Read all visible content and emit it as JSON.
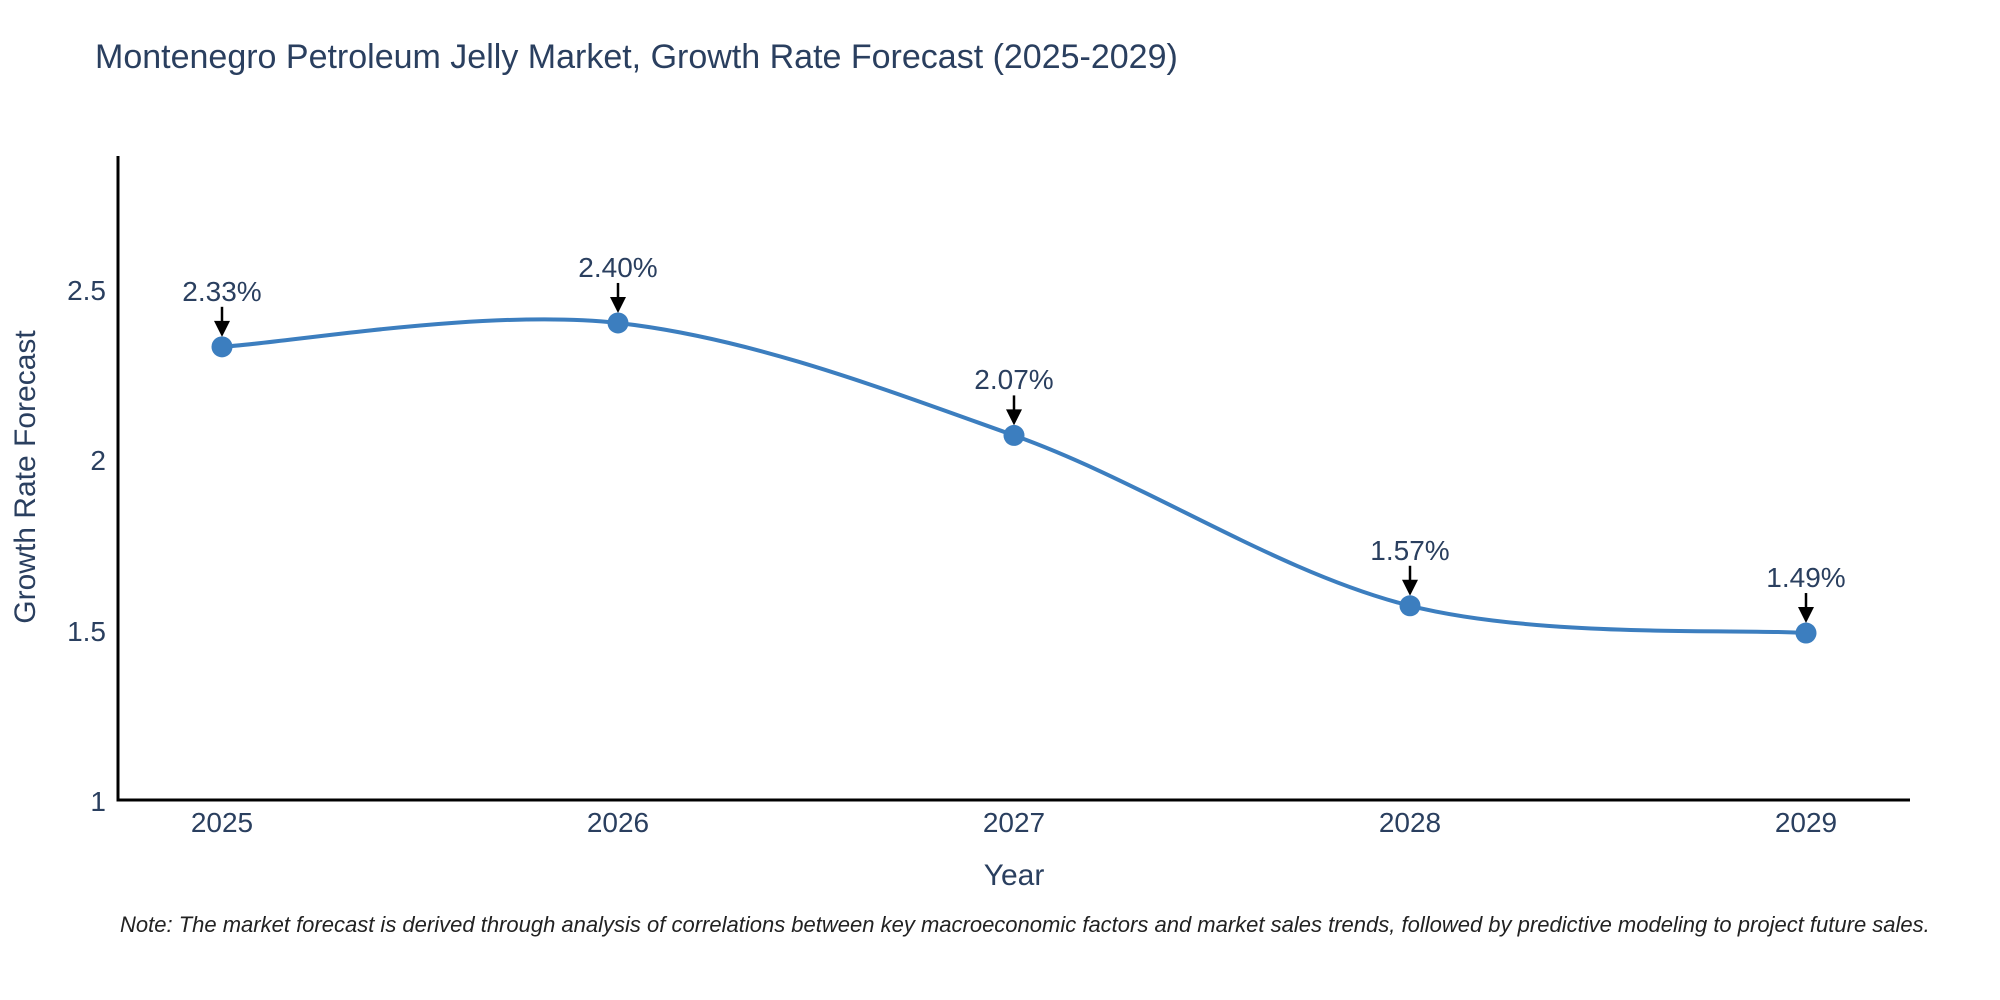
{
  "chart_data": {
    "type": "line",
    "title": "Montenegro Petroleum Jelly Market, Growth Rate Forecast (2025-2029)",
    "xlabel": "Year",
    "ylabel": "Growth Rate Forecast",
    "categories": [
      "2025",
      "2026",
      "2027",
      "2028",
      "2029"
    ],
    "values": [
      2.33,
      2.4,
      2.07,
      1.57,
      1.49
    ],
    "point_labels": [
      "2.33%",
      "2.40%",
      "2.07%",
      "1.57%",
      "1.49%"
    ],
    "yticks": {
      "values": [
        1,
        1.5,
        2,
        2.5
      ],
      "labels": [
        "1",
        "1.5",
        "2",
        "2.5"
      ]
    },
    "ylim": [
      1,
      2.89
    ],
    "line_shape": "spline",
    "grid": false,
    "legend": "none",
    "colors": {
      "line": "#3c7ebf",
      "marker": "#3c7ebf",
      "arrow": "#000000",
      "axis": "#000000",
      "title": "#2a3f5f",
      "tick": "#2a3f5f",
      "note": "#222222",
      "background": "#ffffff"
    }
  },
  "note": {
    "text": "Note: The market forecast is derived through analysis of correlations between key macroeconomic factors and market sales trends, followed by predictive modeling to project future sales."
  }
}
